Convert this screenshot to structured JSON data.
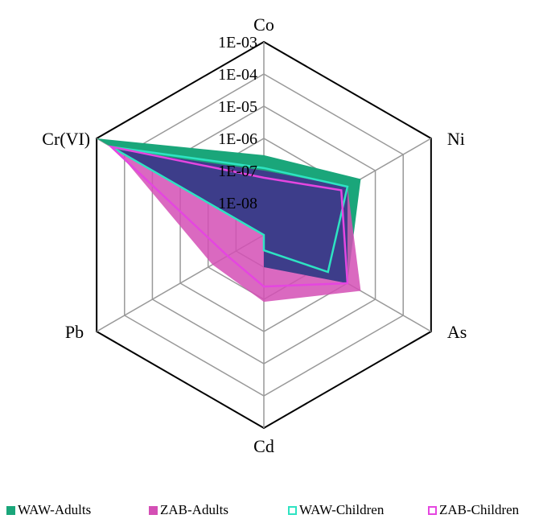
{
  "chart_data": {
    "type": "radar",
    "axes": [
      "Co",
      "Ni",
      "As",
      "Cd",
      "Pb",
      "Cr(VI)"
    ],
    "scale": "log",
    "ticks": [
      "1E-08",
      "1E-07",
      "1E-06",
      "1E-05",
      "1E-04",
      "1E-03"
    ],
    "range": [
      1e-09,
      0.001
    ],
    "series": [
      {
        "name": "WAW-Adults",
        "style": "filled",
        "color": "#1aa67a",
        "values": [
          3e-07,
          3e-06,
          1e-06,
          1e-08,
          1e-09,
          0.001
        ]
      },
      {
        "name": "ZAB-Adults",
        "style": "filled",
        "color": "#d44fb5",
        "values": [
          1e-07,
          1e-06,
          3e-06,
          1.2e-07,
          7e-08,
          0.0002
        ]
      },
      {
        "name": "WAW-Children",
        "style": "outline",
        "color": "#2ee3c2",
        "values": [
          1.2e-07,
          1e-06,
          2e-07,
          3e-09,
          1e-09,
          0.0003
        ]
      },
      {
        "name": "ZAB-Children",
        "style": "outline",
        "color": "#e546e0",
        "values": [
          6e-08,
          6e-07,
          1e-06,
          4e-08,
          2e-08,
          0.0003
        ]
      }
    ]
  },
  "colors": {
    "overlap": "#3d3d8a",
    "grid_outer": "#000000",
    "grid_inner": "#999999"
  }
}
